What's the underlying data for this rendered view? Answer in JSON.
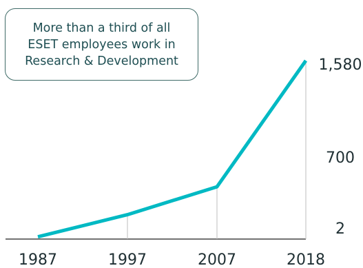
{
  "chart_data": {
    "type": "line",
    "categories": [
      "1987",
      "1997",
      "2007",
      "2018"
    ],
    "series": [
      {
        "values": [
          2,
          200,
          450,
          1580
        ]
      }
    ],
    "y_tick_labels": [
      "2",
      "700",
      "1,580"
    ],
    "y_tick_values": [
      2,
      700,
      1580
    ],
    "ylim": [
      0,
      1580
    ],
    "grid": false,
    "legend": "none",
    "line_color": "#00b9c3",
    "axis_color": "#444444"
  },
  "callout": {
    "text": "More than a third of all\nESET employees work in\nResearch & Development"
  }
}
